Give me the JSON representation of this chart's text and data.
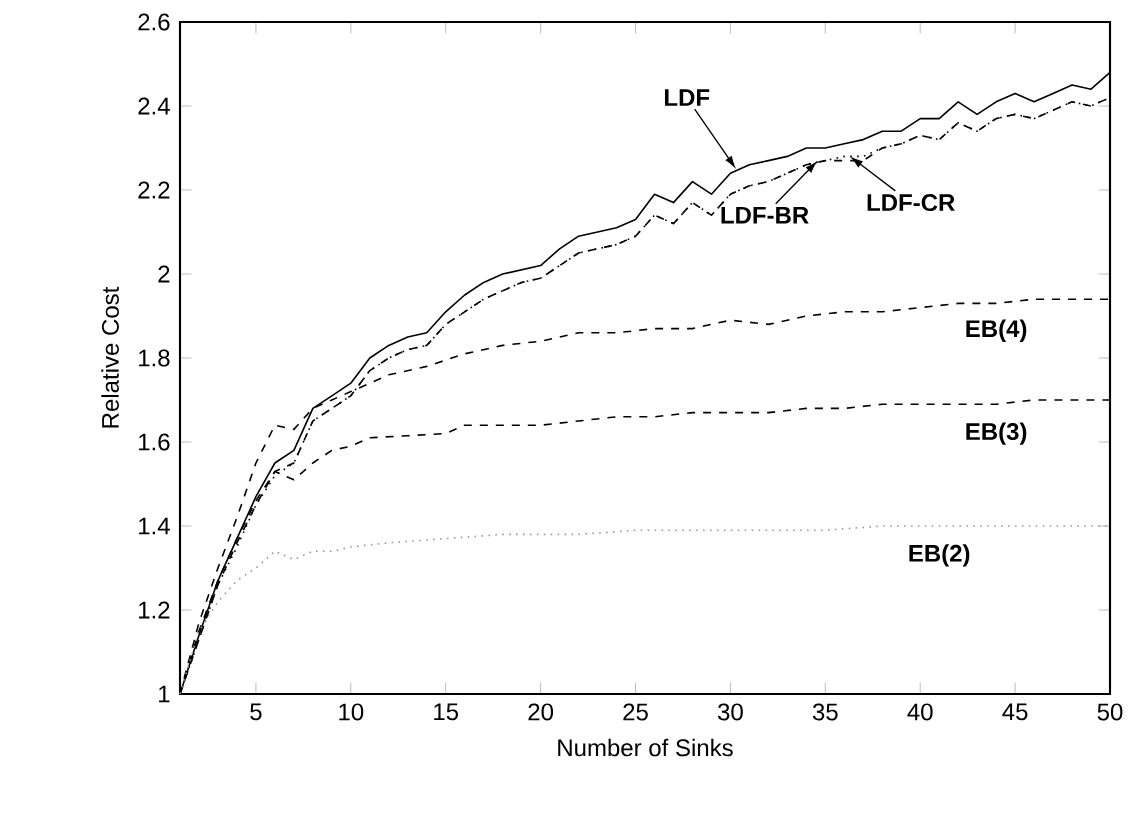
{
  "chart_data": {
    "type": "line",
    "xlabel": "Number of Sinks",
    "ylabel": "Relative Cost",
    "xlim": [
      1,
      50
    ],
    "ylim": [
      1,
      2.6
    ],
    "xticks": [
      5,
      10,
      15,
      20,
      25,
      30,
      35,
      40,
      45,
      50
    ],
    "yticks": [
      1,
      1.2,
      1.4,
      1.6,
      1.8,
      2,
      2.2,
      2.4,
      2.6
    ],
    "grid": false,
    "marker": "none",
    "series": [
      {
        "color": "#000000",
        "line_style": "solid",
        "x": [
          1,
          2,
          3,
          4,
          5,
          6,
          7,
          8,
          9,
          10,
          11,
          12,
          13,
          14,
          15,
          16,
          17,
          18,
          19,
          20,
          21,
          22,
          23,
          24,
          25,
          26,
          27,
          28,
          29,
          30,
          31,
          32,
          33,
          34,
          35,
          36,
          37,
          38,
          39,
          40,
          41,
          42,
          43,
          44,
          45,
          46,
          47,
          48,
          49,
          50
        ],
        "values": [
          1.0,
          1.14,
          1.27,
          1.37,
          1.47,
          1.55,
          1.58,
          1.68,
          1.71,
          1.74,
          1.8,
          1.83,
          1.85,
          1.86,
          1.91,
          1.95,
          1.98,
          2.0,
          2.01,
          2.02,
          2.06,
          2.09,
          2.1,
          2.11,
          2.13,
          2.19,
          2.17,
          2.22,
          2.19,
          2.24,
          2.26,
          2.27,
          2.28,
          2.3,
          2.3,
          2.31,
          2.32,
          2.34,
          2.34,
          2.37,
          2.37,
          2.41,
          2.38,
          2.41,
          2.43,
          2.41,
          2.43,
          2.45,
          2.44,
          2.48
        ]
      },
      {
        "color": "#000000",
        "line_style": "dashed",
        "x": [
          1,
          2,
          3,
          4,
          5,
          6,
          7,
          8,
          9,
          10,
          11,
          12,
          13,
          14,
          15,
          16,
          17,
          18,
          19,
          20,
          21,
          22,
          23,
          24,
          25,
          26,
          27,
          28,
          29,
          30,
          31,
          32,
          33,
          34,
          35,
          36,
          37,
          38,
          39,
          40,
          41,
          42,
          43,
          44,
          45,
          46,
          47,
          48,
          49,
          50
        ],
        "values": [
          1.0,
          1.13,
          1.26,
          1.36,
          1.45,
          1.53,
          1.55,
          1.65,
          1.68,
          1.71,
          1.77,
          1.8,
          1.82,
          1.83,
          1.88,
          1.91,
          1.94,
          1.96,
          1.98,
          1.99,
          2.02,
          2.05,
          2.06,
          2.07,
          2.09,
          2.14,
          2.12,
          2.17,
          2.14,
          2.19,
          2.21,
          2.22,
          2.24,
          2.26,
          2.27,
          2.27,
          2.27,
          2.3,
          2.31,
          2.33,
          2.32,
          2.36,
          2.34,
          2.37,
          2.38,
          2.37,
          2.39,
          2.41,
          2.4,
          2.42
        ]
      },
      {
        "color": "#000000",
        "line_style": "dotted",
        "x": [
          1,
          2,
          3,
          4,
          5,
          6,
          7,
          8,
          9,
          10,
          11,
          12,
          13,
          14,
          15,
          16,
          17,
          18,
          19,
          20,
          21,
          22,
          23,
          24,
          25,
          26,
          27,
          28,
          29,
          30,
          31,
          32,
          33,
          34,
          35,
          36,
          37,
          38,
          39,
          40,
          41,
          42,
          43,
          44,
          45,
          46,
          47,
          48,
          49,
          50
        ],
        "values": [
          1.0,
          1.13,
          1.26,
          1.35,
          1.45,
          1.52,
          1.55,
          1.65,
          1.68,
          1.71,
          1.77,
          1.8,
          1.82,
          1.83,
          1.88,
          1.91,
          1.94,
          1.96,
          1.98,
          1.99,
          2.02,
          2.05,
          2.06,
          2.07,
          2.09,
          2.14,
          2.12,
          2.17,
          2.14,
          2.19,
          2.21,
          2.22,
          2.24,
          2.26,
          2.27,
          2.28,
          2.28,
          2.3,
          2.31,
          2.33,
          2.32,
          2.36,
          2.34,
          2.37,
          2.38,
          2.37,
          2.39,
          2.41,
          2.4,
          2.42
        ]
      },
      {
        "color": "#000000",
        "line_style": "dashed",
        "x": [
          1,
          2,
          3,
          4,
          5,
          6,
          7,
          8,
          9,
          10,
          12,
          14,
          16,
          18,
          20,
          22,
          24,
          26,
          28,
          30,
          32,
          34,
          36,
          38,
          40,
          42,
          44,
          46,
          48,
          50
        ],
        "values": [
          1.0,
          1.17,
          1.3,
          1.42,
          1.55,
          1.64,
          1.63,
          1.68,
          1.7,
          1.72,
          1.76,
          1.78,
          1.81,
          1.83,
          1.84,
          1.86,
          1.86,
          1.87,
          1.87,
          1.89,
          1.88,
          1.9,
          1.91,
          1.91,
          1.92,
          1.93,
          1.93,
          1.94,
          1.94,
          1.94
        ]
      },
      {
        "color": "#000000",
        "line_style": "dashed",
        "x": [
          1,
          2,
          3,
          4,
          5,
          6,
          7,
          8,
          9,
          10,
          11,
          13,
          15,
          16,
          18,
          20,
          22,
          24,
          26,
          28,
          30,
          32,
          34,
          36,
          38,
          40,
          42,
          44,
          46,
          48,
          50
        ],
        "values": [
          1.0,
          1.15,
          1.27,
          1.37,
          1.46,
          1.53,
          1.51,
          1.55,
          1.58,
          1.59,
          1.61,
          1.615,
          1.62,
          1.64,
          1.64,
          1.64,
          1.65,
          1.66,
          1.66,
          1.67,
          1.67,
          1.67,
          1.68,
          1.68,
          1.69,
          1.69,
          1.69,
          1.69,
          1.7,
          1.7,
          1.7
        ]
      },
      {
        "color": "#999999",
        "line_style": "dotted",
        "x": [
          1,
          2,
          3,
          4,
          5,
          6,
          7,
          8,
          9,
          10,
          12,
          15,
          18,
          20,
          22,
          25,
          28,
          30,
          32,
          35,
          38,
          40,
          42,
          45,
          48,
          50
        ],
        "values": [
          1.0,
          1.15,
          1.22,
          1.27,
          1.3,
          1.34,
          1.32,
          1.34,
          1.34,
          1.35,
          1.36,
          1.37,
          1.38,
          1.38,
          1.38,
          1.39,
          1.39,
          1.39,
          1.39,
          1.39,
          1.4,
          1.4,
          1.4,
          1.4,
          1.4,
          1.4
        ]
      }
    ],
    "annotations": [
      {
        "text": "LDF",
        "x": 30.3,
        "y": 2.25
      },
      {
        "text": "LDF-BR",
        "x": 34.6,
        "y": 2.27
      },
      {
        "text": "LDF-CR",
        "x": 36.3,
        "y": 2.28
      },
      {
        "text": "EB(4)",
        "x": 44,
        "y": 1.93
      },
      {
        "text": "EB(3)",
        "x": 44,
        "y": 1.69
      },
      {
        "text": "EB(2)",
        "x": 41,
        "y": 1.4
      }
    ]
  }
}
